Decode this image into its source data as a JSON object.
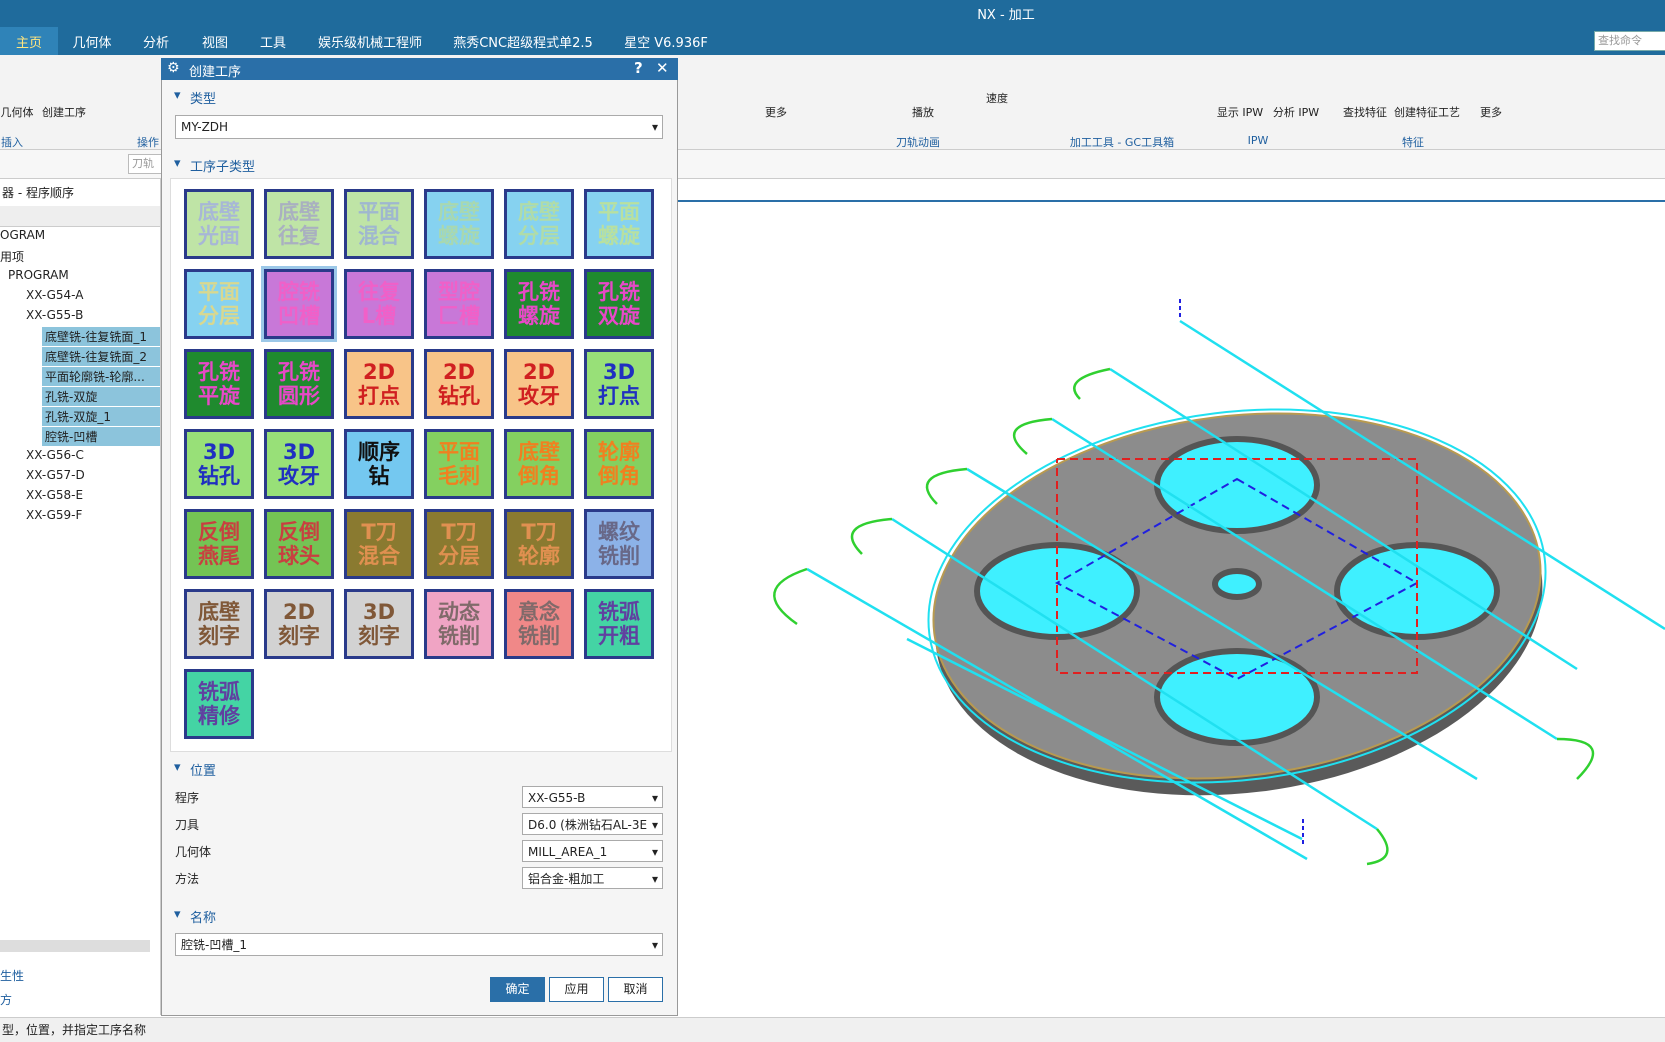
{
  "title_bar": {
    "title": "NX - 加工"
  },
  "menu": {
    "tabs": [
      "主页",
      "几何体",
      "分析",
      "视图",
      "工具",
      "娱乐级机械工程师",
      "燕秀CNC超级程式单2.5",
      "星空 V6.936F"
    ],
    "search": "查找命令"
  },
  "ribbon": {
    "labels": [
      "几何体",
      "创建工序",
      "插入",
      "操作",
      "更多",
      "播放",
      "速度",
      "刀轨动画",
      "加工工具 - GC工具箱",
      "显示 IPW",
      "分析 IPW",
      "IPW",
      "查找特征",
      "创建特征工艺",
      "更多",
      "特征"
    ]
  },
  "toolbar": {
    "filter": "刀轨"
  },
  "navigator": {
    "header": "器 - 程序顺序",
    "items": [
      "OGRAM",
      "用项",
      "PROGRAM",
      "XX-G54-A",
      "XX-G55-B",
      "底壁铣-往复铣面_1",
      "底壁铣-往复铣面_2",
      "平面轮廓铣-轮廓...",
      "孔铣-双旋",
      "孔铣-双旋_1",
      "腔铣-凹槽",
      "XX-G56-C",
      "XX-G57-D",
      "XX-G58-E",
      "XX-G59-F"
    ],
    "bottom": [
      "生性",
      "方"
    ]
  },
  "dialog": {
    "title": "创建工序",
    "help": "?",
    "close": "✕",
    "type_section": "类型",
    "type_value": "MY-ZDH",
    "subtype_section": "工序子类型",
    "tiles": [
      {
        "lines": [
          "底壁",
          "光面"
        ],
        "bg": "#bfe4a6",
        "fg": "#a7b7d6"
      },
      {
        "lines": [
          "底壁",
          "往复"
        ],
        "bg": "#bfe4a6",
        "fg": "#a9b0c0"
      },
      {
        "lines": [
          "平面",
          "混合"
        ],
        "bg": "#bfe4a6",
        "fg": "#9fb7cf"
      },
      {
        "lines": [
          "底壁",
          "螺旋"
        ],
        "bg": "#86d2f0",
        "fg": "#a8d8b0"
      },
      {
        "lines": [
          "底壁",
          "分层"
        ],
        "bg": "#86d2f0",
        "fg": "#b0dca8"
      },
      {
        "lines": [
          "平面",
          "螺旋"
        ],
        "bg": "#86d2f0",
        "fg": "#b8e0a0"
      },
      {
        "lines": [
          "平面",
          "分层"
        ],
        "bg": "#86d2f0",
        "fg": "#d8d890"
      },
      {
        "lines": [
          "腔铣",
          "凹槽"
        ],
        "bg": "#c878d8",
        "fg": "#f060c8"
      },
      {
        "lines": [
          "往复",
          "L槽"
        ],
        "bg": "#c878d8",
        "fg": "#f060c8"
      },
      {
        "lines": [
          "型腔",
          "匚槽"
        ],
        "bg": "#c878d8",
        "fg": "#f060c8"
      },
      {
        "lines": [
          "孔铣",
          "螺旋"
        ],
        "bg": "#1f8a2e",
        "fg": "#e848c8"
      },
      {
        "lines": [
          "孔铣",
          "双旋"
        ],
        "bg": "#1f8a2e",
        "fg": "#e848c8"
      },
      {
        "lines": [
          "孔铣",
          "平旋"
        ],
        "bg": "#1f8a2e",
        "fg": "#e848c8"
      },
      {
        "lines": [
          "孔铣",
          "圆形"
        ],
        "bg": "#1f8a2e",
        "fg": "#e848c8"
      },
      {
        "lines": [
          "2D",
          "打点"
        ],
        "bg": "#f8c488",
        "fg": "#d02020"
      },
      {
        "lines": [
          "2D",
          "钻孔"
        ],
        "bg": "#f8c488",
        "fg": "#d02020"
      },
      {
        "lines": [
          "2D",
          "攻牙"
        ],
        "bg": "#f8c488",
        "fg": "#d02020"
      },
      {
        "lines": [
          "3D",
          "打点"
        ],
        "bg": "#98e078",
        "fg": "#2030c0"
      },
      {
        "lines": [
          "3D",
          "钻孔"
        ],
        "bg": "#98e078",
        "fg": "#2030c0"
      },
      {
        "lines": [
          "3D",
          "攻牙"
        ],
        "bg": "#98e078",
        "fg": "#2030c0"
      },
      {
        "lines": [
          "顺序",
          "钻"
        ],
        "bg": "#74c8f0",
        "fg": "#101010"
      },
      {
        "lines": [
          "平面",
          "毛刺"
        ],
        "bg": "#84d060",
        "fg": "#f08020"
      },
      {
        "lines": [
          "底壁",
          "倒角"
        ],
        "bg": "#84d060",
        "fg": "#f08020"
      },
      {
        "lines": [
          "轮廓",
          "倒角"
        ],
        "bg": "#84d060",
        "fg": "#f08020"
      },
      {
        "lines": [
          "反倒",
          "燕尾"
        ],
        "bg": "#74c454",
        "fg": "#c84040"
      },
      {
        "lines": [
          "反倒",
          "球头"
        ],
        "bg": "#74c454",
        "fg": "#c84040"
      },
      {
        "lines": [
          "T刀",
          "混合"
        ],
        "bg": "#8a7a30",
        "fg": "#e09050"
      },
      {
        "lines": [
          "T刀",
          "分层"
        ],
        "bg": "#8a7a30",
        "fg": "#e09050"
      },
      {
        "lines": [
          "T刀",
          "轮廓"
        ],
        "bg": "#8a7a30",
        "fg": "#e09050"
      },
      {
        "lines": [
          "螺纹",
          "铣削"
        ],
        "bg": "#8cb2e8",
        "fg": "#686888"
      },
      {
        "lines": [
          "底壁",
          "刻字"
        ],
        "bg": "#d2d2d2",
        "fg": "#805838"
      },
      {
        "lines": [
          "2D",
          "刻字"
        ],
        "bg": "#d2d2d2",
        "fg": "#805838"
      },
      {
        "lines": [
          "3D",
          "刻字"
        ],
        "bg": "#d2d2d2",
        "fg": "#805838"
      },
      {
        "lines": [
          "动态",
          "铣削"
        ],
        "bg": "#f0a4c4",
        "fg": "#806a6a"
      },
      {
        "lines": [
          "意念",
          "铣削"
        ],
        "bg": "#f08888",
        "fg": "#806a6a"
      },
      {
        "lines": [
          "铣弧",
          "开粗"
        ],
        "bg": "#44d4a4",
        "fg": "#6040a0"
      },
      {
        "lines": [
          "铣弧",
          "精修"
        ],
        "bg": "#44d4a4",
        "fg": "#6040a0"
      }
    ],
    "location_section": "位置",
    "fields": [
      {
        "label": "程序",
        "value": "XX-G55-B"
      },
      {
        "label": "刀具",
        "value": "D6.0 (株洲钻石AL-3E"
      },
      {
        "label": "几何体",
        "value": "MILL_AREA_1"
      },
      {
        "label": "方法",
        "value": "铝合金-粗加工"
      }
    ],
    "name_section": "名称",
    "name_value": "腔铣-凹槽_1",
    "buttons": [
      "确定",
      "应用",
      "取消"
    ]
  },
  "status_bar": {
    "text": "型，位置，并指定工序名称"
  }
}
